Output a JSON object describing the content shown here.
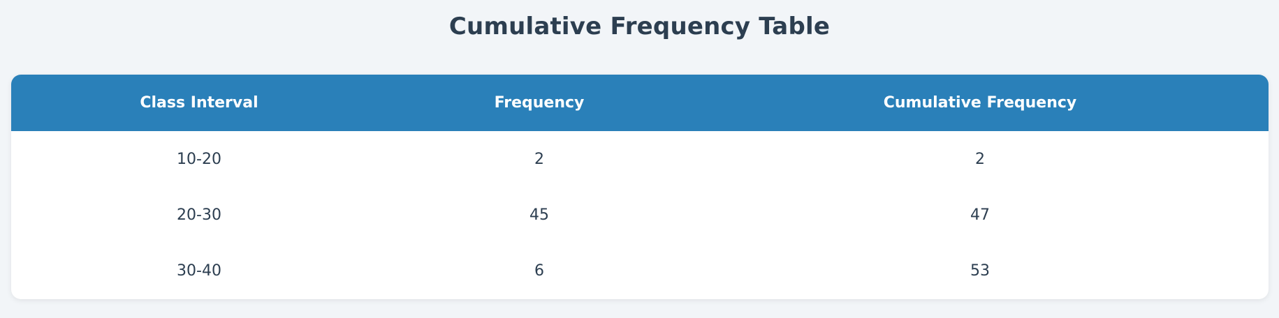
{
  "title": "Cumulative Frequency Table",
  "colors": {
    "header_bg": "#2a80b9",
    "header_text": "#ffffff",
    "page_bg": "#f2f5f8",
    "text": "#2c3e50"
  },
  "chart_data": {
    "type": "table",
    "title": "Cumulative Frequency Table",
    "columns": [
      "Class Interval",
      "Frequency",
      "Cumulative Frequency"
    ],
    "rows": [
      [
        "10-20",
        "2",
        "2"
      ],
      [
        "20-30",
        "45",
        "47"
      ],
      [
        "30-40",
        "6",
        "53"
      ]
    ]
  }
}
